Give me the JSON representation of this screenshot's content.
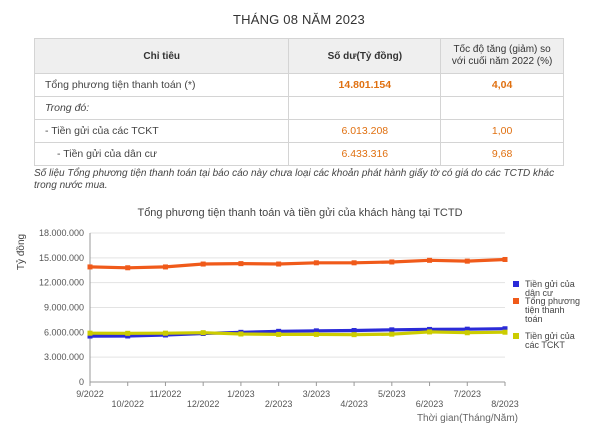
{
  "page_title": "THÁNG 08 NĂM 2023",
  "table": {
    "headers": [
      "Chỉ tiêu",
      "Số dư(Tỷ đồng)",
      "Tốc độ tăng (giảm) so với cuối năm 2022 (%)"
    ],
    "rows": [
      {
        "label": "Tổng phương tiện thanh toán (*)",
        "balance": "14.801.154",
        "rate": "4,04"
      },
      {
        "label": "Trong đó:",
        "balance": "",
        "rate": ""
      },
      {
        "label": " - Tiền gửi của các TCKT",
        "balance": "6.013.208",
        "rate": "1,00"
      },
      {
        "label": "  - Tiền gửi của dân cư",
        "balance": "6.433.316",
        "rate": "9,68"
      }
    ]
  },
  "footnote": "Số liệu Tổng phương tiện thanh toán tại báo cáo này chưa loại các khoản phát hành giấy tờ có giá do các TCTD khác trong nước mua.",
  "chart_data": {
    "type": "line",
    "title": "Tổng phương tiện thanh toán và tiền gửi của khách hàng tại TCTD",
    "xlabel": "Thời gian(Tháng/Năm)",
    "ylabel": "Tỷ đồng",
    "categories": [
      "9/2022",
      "10/2022",
      "11/2022",
      "12/2022",
      "1/2023",
      "2/2023",
      "3/2023",
      "4/2023",
      "5/2023",
      "6/2023",
      "7/2023",
      "8/2023"
    ],
    "yticks": [
      "0",
      "3.000.000",
      "6.000.000",
      "9.000.000",
      "12.000.000",
      "15.000.000",
      "18.000.000"
    ],
    "ylim": [
      0,
      18000000
    ],
    "grid": true,
    "legend_position": "right",
    "series": [
      {
        "name": "Tiền gửi của dân cư",
        "color": "#2b2bd8",
        "values": [
          5550000,
          5560000,
          5680000,
          5860000,
          6000000,
          6120000,
          6180000,
          6220000,
          6300000,
          6350000,
          6380000,
          6433316
        ]
      },
      {
        "name": "Tổng phương tiện thanh toán",
        "color": "#f05a1a",
        "values": [
          13900000,
          13800000,
          13900000,
          14250000,
          14300000,
          14250000,
          14400000,
          14400000,
          14500000,
          14700000,
          14600000,
          14801154
        ]
      },
      {
        "name": "Tiền gửi của các TCKT",
        "color": "#cccc00",
        "values": [
          5900000,
          5880000,
          5900000,
          5960000,
          5800000,
          5750000,
          5750000,
          5720000,
          5780000,
          6050000,
          5950000,
          6013208
        ]
      }
    ]
  }
}
